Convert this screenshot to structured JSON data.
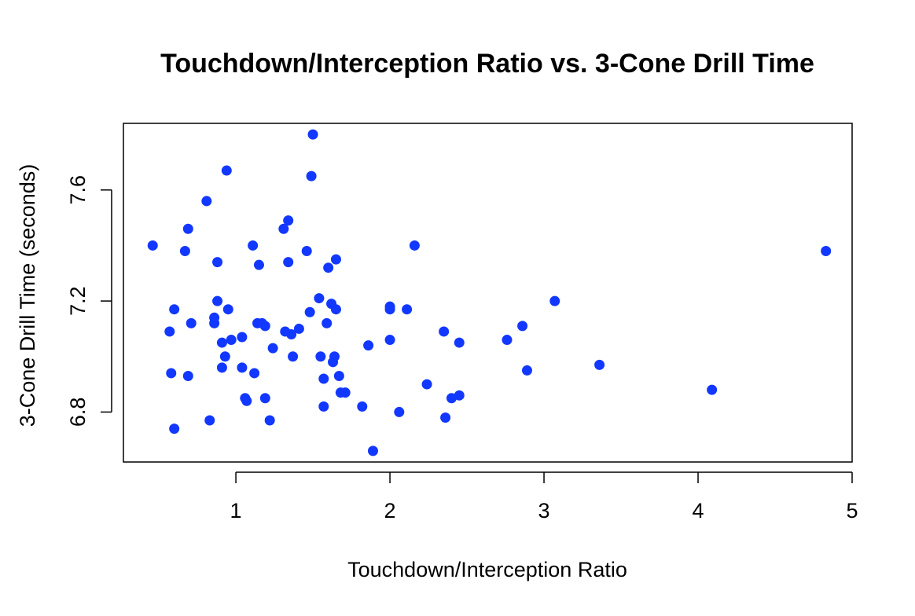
{
  "chart_data": {
    "type": "scatter",
    "title": "Touchdown/Interception Ratio vs. 3-Cone Drill Time",
    "xlabel": "Touchdown/Interception Ratio",
    "ylabel": "3-Cone Drill Time (seconds)",
    "xlim": [
      0.27,
      5.0
    ],
    "ylim": [
      6.62,
      7.84
    ],
    "xticks": [
      1,
      2,
      3,
      4,
      5
    ],
    "yticks": [
      6.8,
      7.2,
      7.6
    ],
    "point_color": "#1238FF",
    "grid": false,
    "series": [
      {
        "points": [
          [
            0.46,
            7.4
          ],
          [
            0.57,
            7.09
          ],
          [
            0.58,
            6.94
          ],
          [
            0.6,
            6.74
          ],
          [
            0.6,
            7.17
          ],
          [
            0.67,
            7.38
          ],
          [
            0.69,
            7.46
          ],
          [
            0.69,
            6.93
          ],
          [
            0.71,
            7.12
          ],
          [
            0.81,
            7.56
          ],
          [
            0.83,
            6.77
          ],
          [
            0.86,
            7.14
          ],
          [
            0.86,
            7.12
          ],
          [
            0.88,
            7.34
          ],
          [
            0.88,
            7.2
          ],
          [
            0.91,
            6.96
          ],
          [
            0.91,
            7.05
          ],
          [
            0.93,
            7.0
          ],
          [
            0.94,
            7.67
          ],
          [
            0.95,
            7.17
          ],
          [
            0.97,
            7.06
          ],
          [
            1.04,
            7.07
          ],
          [
            1.04,
            6.96
          ],
          [
            1.06,
            6.85
          ],
          [
            1.07,
            6.84
          ],
          [
            1.11,
            7.4
          ],
          [
            1.12,
            6.94
          ],
          [
            1.14,
            7.12
          ],
          [
            1.15,
            7.33
          ],
          [
            1.17,
            7.12
          ],
          [
            1.19,
            7.11
          ],
          [
            1.19,
            6.85
          ],
          [
            1.22,
            6.77
          ],
          [
            1.24,
            7.03
          ],
          [
            1.31,
            7.46
          ],
          [
            1.32,
            7.09
          ],
          [
            1.34,
            7.49
          ],
          [
            1.34,
            7.34
          ],
          [
            1.36,
            7.08
          ],
          [
            1.37,
            7.0
          ],
          [
            1.41,
            7.1
          ],
          [
            1.46,
            7.38
          ],
          [
            1.48,
            7.16
          ],
          [
            1.49,
            7.65
          ],
          [
            1.5,
            7.8
          ],
          [
            1.54,
            7.21
          ],
          [
            1.55,
            7.0
          ],
          [
            1.57,
            6.92
          ],
          [
            1.57,
            6.82
          ],
          [
            1.59,
            7.12
          ],
          [
            1.6,
            7.32
          ],
          [
            1.62,
            7.19
          ],
          [
            1.63,
            6.98
          ],
          [
            1.64,
            7.0
          ],
          [
            1.65,
            7.35
          ],
          [
            1.65,
            7.17
          ],
          [
            1.67,
            6.93
          ],
          [
            1.68,
            6.87
          ],
          [
            1.71,
            6.87
          ],
          [
            1.82,
            6.82
          ],
          [
            1.86,
            7.04
          ],
          [
            1.89,
            6.66
          ],
          [
            2.0,
            7.18
          ],
          [
            2.0,
            7.17
          ],
          [
            2.0,
            7.06
          ],
          [
            2.06,
            6.8
          ],
          [
            2.11,
            7.17
          ],
          [
            2.16,
            7.4
          ],
          [
            2.24,
            6.9
          ],
          [
            2.35,
            7.09
          ],
          [
            2.36,
            6.78
          ],
          [
            2.4,
            6.85
          ],
          [
            2.45,
            7.05
          ],
          [
            2.45,
            6.86
          ],
          [
            2.76,
            7.06
          ],
          [
            2.86,
            7.11
          ],
          [
            2.89,
            6.95
          ],
          [
            3.07,
            7.2
          ],
          [
            3.36,
            6.97
          ],
          [
            4.09,
            6.88
          ],
          [
            4.83,
            7.38
          ]
        ]
      }
    ]
  }
}
